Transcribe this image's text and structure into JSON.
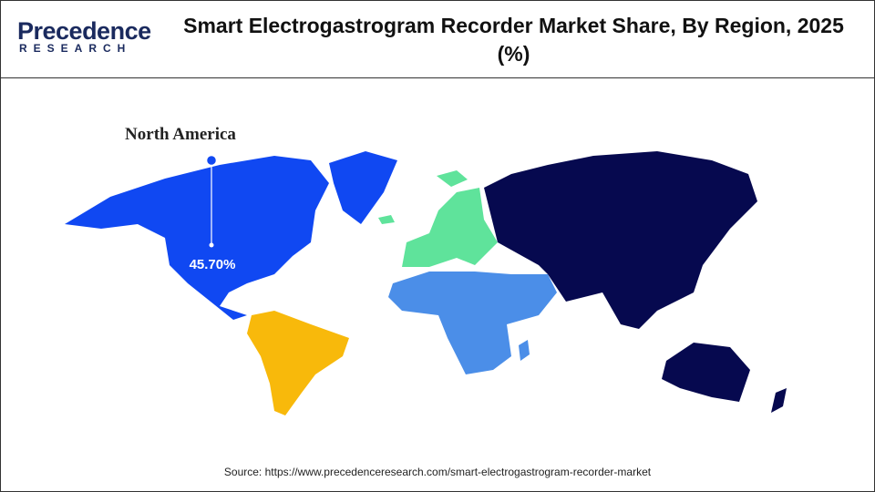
{
  "header": {
    "logo": {
      "line1": "Precedence",
      "line2": "RESEARCH"
    },
    "title": "Smart Electrogastrogram Recorder Market Share, By Region, 2025 (%)"
  },
  "map": {
    "callout": {
      "label": "North America",
      "value": "45.70%"
    }
  },
  "source": "Source: https://www.precedenceresearch.com/smart-electrogastrogram-recorder-market"
}
